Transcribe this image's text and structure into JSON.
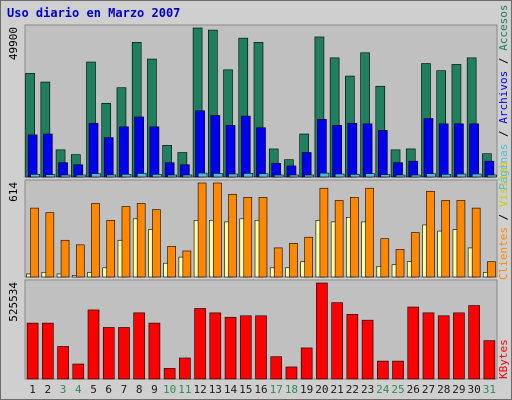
{
  "colors": {
    "frame_bg": "#cfcfcf",
    "plot_bg": "#c0c0c0",
    "visitas": "#ffffa0",
    "paginas": "#4bbede",
    "archivos": "#0000ee",
    "accesos": "#1f7f5e",
    "clientes": "#ff8800",
    "kbytes": "#ff0000",
    "weekday_label": "#1a1a1a",
    "weekend_label": "#2e8b57"
  },
  "chart_data": {
    "type": "bar",
    "title": "Uso diario en Marzo 2007",
    "categories": [
      "1",
      "2",
      "3",
      "4",
      "5",
      "6",
      "7",
      "8",
      "9",
      "10",
      "11",
      "12",
      "13",
      "14",
      "15",
      "16",
      "17",
      "18",
      "19",
      "20",
      "21",
      "22",
      "23",
      "24",
      "25",
      "26",
      "27",
      "28",
      "29",
      "30",
      "31"
    ],
    "weekend_days": [
      "3",
      "4",
      "10",
      "11",
      "17",
      "18",
      "24",
      "25",
      "31"
    ],
    "panels": [
      {
        "axis_max_label": "49900",
        "ylim": [
          0,
          49900
        ],
        "series": [
          {
            "name": "Accesos",
            "color": "#1f7f5e",
            "values": [
              34700,
              31800,
              9100,
              7500,
              38500,
              24700,
              29900,
              45100,
              39500,
              10600,
              8200,
              50500,
              49200,
              35900,
              46500,
              45100,
              9400,
              5800,
              14400,
              46900,
              39900,
              33800,
              41600,
              30400,
              9100,
              9400,
              38000,
              35600,
              37700,
              39900,
              7800
            ]
          },
          {
            "name": "Archivos",
            "color": "#0000ee",
            "values": [
              14100,
              14400,
              4800,
              4100,
              18000,
              13200,
              16800,
              20100,
              16800,
              4800,
              4100,
              22200,
              20600,
              17300,
              20400,
              16500,
              4600,
              3700,
              8200,
              19300,
              17300,
              18000,
              17800,
              15600,
              4800,
              5300,
              19600,
              17800,
              17800,
              17800,
              5300
            ]
          },
          {
            "name": "Páginas",
            "color": "#4bbede",
            "values": [
              900,
              800,
              300,
              300,
              1100,
              700,
              900,
              1200,
              900,
              300,
              200,
              1300,
              1200,
              1000,
              1200,
              1100,
              300,
              200,
              400,
              1300,
              1000,
              900,
              1100,
              800,
              300,
              300,
              1100,
              900,
              1000,
              1000,
              200
            ]
          }
        ]
      },
      {
        "axis_max_label": "614",
        "ylim": [
          0,
          614
        ],
        "series": [
          {
            "name": "Visitas",
            "color": "#ffffa0",
            "values": [
              20,
              30,
              20,
              10,
              30,
              60,
              240,
              380,
              310,
              90,
              130,
              370,
              370,
              360,
              380,
              370,
              60,
              60,
              100,
              370,
              360,
              390,
              360,
              70,
              80,
              100,
              340,
              300,
              310,
              190,
              30
            ]
          },
          {
            "name": "Clientes",
            "color": "#ff8800",
            "values": [
              450,
              420,
              240,
              210,
              480,
              370,
              460,
              480,
              440,
              200,
              170,
              630,
              630,
              540,
              520,
              520,
              190,
              220,
              260,
              580,
              500,
              520,
              580,
              250,
              180,
              290,
              560,
              500,
              500,
              450,
              100
            ]
          }
        ]
      },
      {
        "axis_max_label": "525534",
        "ylim": [
          0,
          525534
        ],
        "series": [
          {
            "name": "KBytes",
            "color": "#ff0000",
            "values": [
              306000,
              306000,
              178000,
              82000,
              378000,
              282000,
              282000,
              362000,
              306000,
              58000,
              115000,
              386000,
              362000,
              338000,
              346000,
              346000,
              122000,
              66000,
              170000,
              540000,
              418000,
              354000,
              322000,
              98000,
              98000,
              394000,
              362000,
              346000,
              362000,
              402000,
              210000
            ]
          }
        ]
      }
    ],
    "side_labels": [
      {
        "text": "Accesos",
        "color": "#1f7f5e"
      },
      {
        "text": "Archivos",
        "color": "#0000ee"
      },
      {
        "text": "Páginas",
        "color": "#4bbede"
      },
      {
        "text": "Visitas",
        "color": "#cccc00"
      },
      {
        "text": "Clientes",
        "color": "#ff8800"
      },
      {
        "text": "KBytes",
        "color": "#ff0000"
      }
    ],
    "separator": "/"
  }
}
